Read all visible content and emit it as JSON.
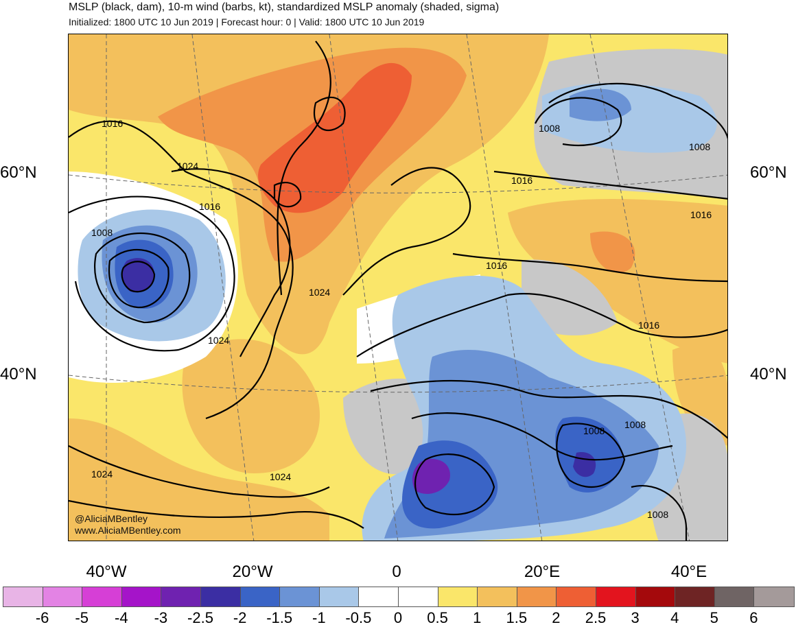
{
  "header": {
    "title": "MSLP (black, dam), 10-m wind (barbs, kt), standardized MSLP anomaly (shaded, sigma)",
    "subtitle": "Initialized: 1800 UTC 10 Jun 2019 | Forecast hour: 0 | Valid: 1800 UTC 10 Jun 2019"
  },
  "map": {
    "lat_labels": [
      "60°N",
      "40°N"
    ],
    "lon_labels": [
      "40°W",
      "20°W",
      "0",
      "20°E",
      "40°E"
    ],
    "isobar_labels": [
      "1016",
      "1024",
      "1016",
      "1008",
      "1024",
      "1024",
      "1024",
      "1024",
      "1016",
      "1016",
      "1016",
      "1008",
      "1008",
      "1016",
      "1008",
      "1008",
      "1008"
    ],
    "credit": {
      "handle": "@AliciaMBentley",
      "website": "www.AliciaMBentley.com"
    }
  },
  "colorbar": {
    "labels": [
      "-6",
      "-5",
      "-4",
      "-3",
      "-2.5",
      "-2",
      "-1.5",
      "-1",
      "-0.5",
      "0",
      "0.5",
      "1",
      "1.5",
      "2",
      "2.5",
      "3",
      "4",
      "5",
      "6"
    ],
    "colors": [
      "#e8b4e6",
      "#e383e4",
      "#d63fd6",
      "#a514c9",
      "#6f22b0",
      "#3b2ea3",
      "#3a64c6",
      "#6b93d5",
      "#a9c8e8",
      "#ffffff",
      "#ffffff",
      "#fae66a",
      "#f3c05c",
      "#f19548",
      "#ee5f34",
      "#e3141e",
      "#a4090c",
      "#6e2424",
      "#6f6464",
      "#a49a9a"
    ]
  },
  "colors": {
    "land_gray": "#c8c8c8",
    "positive_light": "#fae66a",
    "positive_mid": "#f3c05c",
    "positive_strong": "#f19548",
    "positive_peak": "#ee5f34",
    "negative_light": "#a9c8e8",
    "negative_mid": "#6b93d5",
    "negative_strong": "#3a64c6",
    "negative_peak": "#3b2ea3",
    "negative_core": "#6f22b0"
  }
}
